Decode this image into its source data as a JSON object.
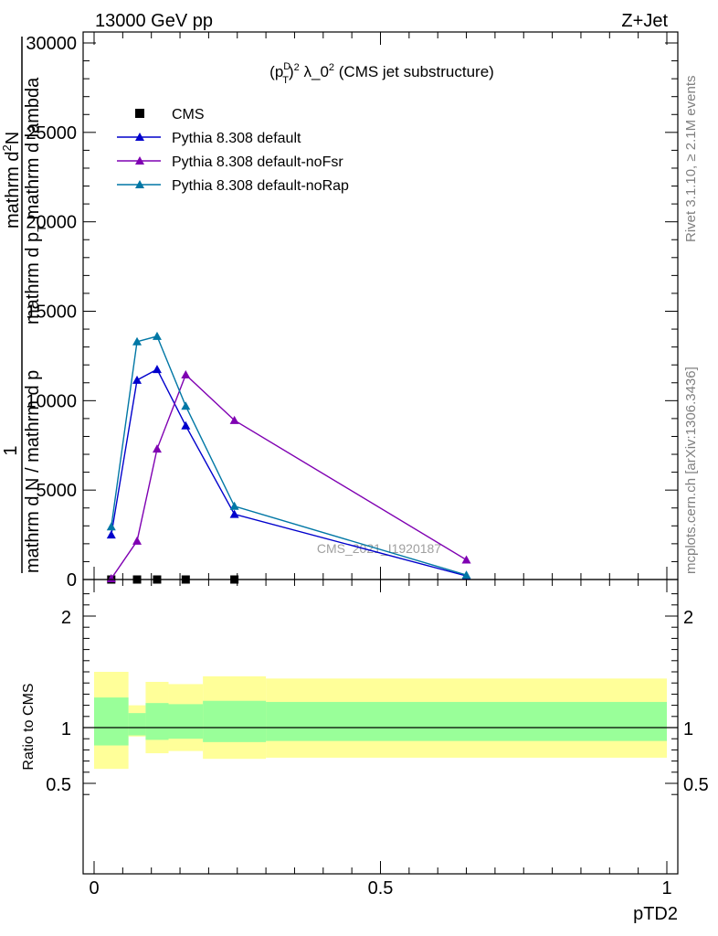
{
  "header": {
    "left": "13000 GeV pp",
    "right": "Z+Jet"
  },
  "side": {
    "rivet": "Rivet 3.1.10, ≥ 2.1M events",
    "url": "mcplots.cern.ch [arXiv:1306.3436]"
  },
  "chart_data": [
    {
      "type": "line",
      "title_main": "(p",
      "title_sup1": "D",
      "title_sub1": "T",
      "title_sup2": "2",
      "title_rest": " λ_0",
      "title_sup3": "2",
      "title_tail": " (CMS jet substructure)",
      "ylabel_top": "1",
      "ylabel_bottom": "mathrm d N / mathrm d p",
      "ylabel_bottom_sub": "T",
      "ylabel_bottom2": "mathrm d N",
      "ylabel_bottom3": "mathrm d p",
      "ylabel_numerator": "mathrm d",
      "ylabel_numerator_sup": "2",
      "ylabel_numerator_tail": "N",
      "ylabel_denominator": "mathrm d p",
      "ylabel_denominator_sub": "T",
      "ylabel_denominator_tail": " mathrm d lambda",
      "watermark": "CMS_2021_I1920187",
      "xlim": [
        0,
        1
      ],
      "ylim": [
        0,
        30000
      ],
      "yticks": [
        0,
        5000,
        10000,
        15000,
        20000,
        25000,
        30000
      ],
      "ytick_labels": [
        "0",
        "5000",
        "10000",
        "15000",
        "20000",
        "25000",
        "30000"
      ],
      "legend_position": "top-left",
      "series": [
        {
          "name": "CMS",
          "color": "#000000",
          "marker": "square",
          "x": [
            0.03,
            0.075,
            0.11,
            0.16,
            0.245
          ],
          "y": [
            0,
            0,
            0,
            0,
            0
          ]
        },
        {
          "name": "Pythia 8.308 default",
          "color": "#0000cc",
          "marker": "triangle",
          "x": [
            0.03,
            0.075,
            0.11,
            0.16,
            0.245,
            0.65
          ],
          "y": [
            2500,
            11150,
            11750,
            8600,
            3650,
            200
          ]
        },
        {
          "name": "Pythia 8.308 default-noFsr",
          "color": "#7f00b2",
          "marker": "triangle",
          "x": [
            0.03,
            0.075,
            0.11,
            0.16,
            0.245,
            0.65
          ],
          "y": [
            50,
            2150,
            7300,
            11450,
            8900,
            1100
          ]
        },
        {
          "name": "Pythia 8.308 default-noRap",
          "color": "#0077a5",
          "marker": "triangle",
          "x": [
            0.03,
            0.075,
            0.11,
            0.16,
            0.245,
            0.65
          ],
          "y": [
            2950,
            13300,
            13600,
            9700,
            4100,
            250
          ]
        }
      ]
    },
    {
      "type": "area",
      "ylabel": "Ratio to CMS",
      "xlabel": "pTD2",
      "xlim": [
        0,
        1
      ],
      "ylim": [
        0.35,
        2.25
      ],
      "yticks": [
        0.5,
        1,
        2
      ],
      "ytick_labels": [
        "0.5",
        "1",
        "2"
      ],
      "xticks": [
        0,
        0.5,
        1
      ],
      "xtick_labels": [
        "0",
        "0.5",
        "1"
      ],
      "reference_line": 1,
      "bands": {
        "bin_edges": [
          0,
          0.06,
          0.09,
          0.13,
          0.19,
          0.3,
          1.0
        ],
        "yellow_low": [
          0.63,
          0.92,
          0.77,
          0.79,
          0.72,
          0.73
        ],
        "yellow_high": [
          1.5,
          1.2,
          1.41,
          1.39,
          1.46,
          1.44
        ],
        "green_low": [
          0.84,
          0.93,
          0.89,
          0.9,
          0.87,
          0.88
        ],
        "green_high": [
          1.27,
          1.13,
          1.22,
          1.21,
          1.24,
          1.23
        ],
        "yellow_color": "#ffff99",
        "green_color": "#99ff99"
      }
    }
  ]
}
